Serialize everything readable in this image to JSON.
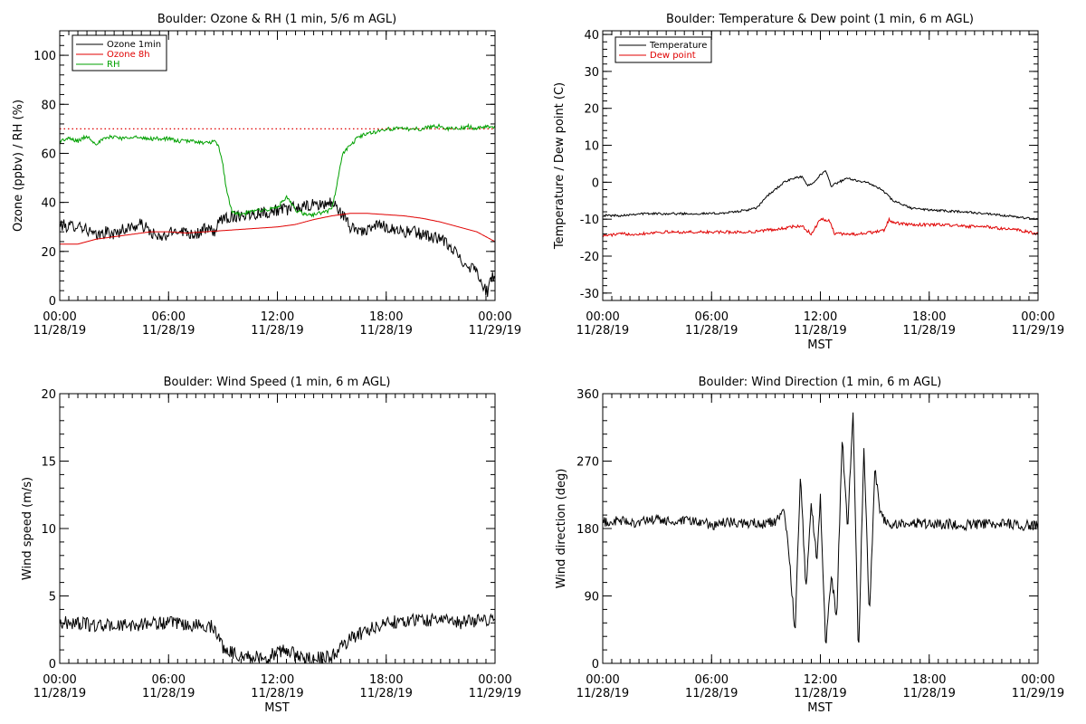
{
  "chart_data": [
    {
      "type": "line",
      "title": "Boulder: Ozone & RH (1 min, 5/6 m AGL)",
      "xlabel": "",
      "ylabel": "Ozone (ppbv) / RH (%)",
      "xlim": [
        0,
        24
      ],
      "ylim": [
        0,
        110
      ],
      "grid": false,
      "legend_position": "top-left",
      "xticks": [
        {
          "hours": 0,
          "time": "00:00",
          "date": "11/28/19"
        },
        {
          "hours": 6,
          "time": "06:00",
          "date": "11/28/19"
        },
        {
          "hours": 12,
          "time": "12:00",
          "date": "11/28/19"
        },
        {
          "hours": 18,
          "time": "18:00",
          "date": "11/28/19"
        },
        {
          "hours": 24,
          "time": "00:00",
          "date": "11/29/19"
        }
      ],
      "yticks": [
        0,
        20,
        40,
        60,
        80,
        100
      ],
      "series": [
        {
          "name": "Ozone 1min",
          "color": "#000000",
          "noise": 2.5,
          "x": [
            0,
            0.5,
            1,
            1.5,
            2,
            2.5,
            3,
            3.5,
            4,
            4.5,
            5,
            5.5,
            6,
            6.5,
            7,
            7.5,
            8,
            8.5,
            9,
            9.5,
            10,
            10.5,
            11,
            11.5,
            12,
            12.5,
            13,
            13.5,
            14,
            14.5,
            15,
            15.5,
            16,
            16.5,
            17,
            17.5,
            18,
            18.5,
            19,
            19.5,
            20,
            20.5,
            21,
            21.5,
            22,
            22.5,
            23,
            23.3,
            23.6,
            23.8,
            24
          ],
          "y": [
            31,
            30,
            31,
            29,
            26,
            28,
            27,
            29,
            30,
            31,
            28,
            25,
            27,
            29,
            28,
            27,
            29,
            28,
            34,
            34,
            35,
            35,
            36,
            36,
            37,
            37,
            38,
            38,
            39,
            39,
            40,
            36,
            30,
            29,
            28,
            31,
            30,
            29,
            28,
            28,
            27,
            26,
            25,
            22,
            18,
            14,
            13,
            6,
            3,
            10,
            9
          ]
        },
        {
          "name": "Ozone 8h",
          "color": "#e00000",
          "noise": 0,
          "x": [
            0,
            1,
            2,
            3,
            4,
            5,
            6,
            7,
            8,
            9,
            10,
            11,
            12,
            13,
            14,
            15,
            16,
            17,
            18,
            19,
            20,
            21,
            22,
            23,
            24
          ],
          "y": [
            23,
            23,
            25,
            26,
            27,
            28,
            28,
            27.5,
            28,
            28.5,
            29,
            29.5,
            30,
            31,
            33,
            34.5,
            35.5,
            35.5,
            35,
            34.5,
            33.5,
            32,
            30,
            28,
            24
          ]
        },
        {
          "name": "RH",
          "color": "#00a000",
          "noise": 0.8,
          "x": [
            0,
            0.5,
            1,
            1.5,
            2,
            2.5,
            3,
            3.5,
            4,
            4.5,
            5,
            5.5,
            6,
            6.5,
            7,
            7.5,
            8,
            8.5,
            8.8,
            9,
            9.2,
            9.5,
            10,
            10.5,
            11,
            11.5,
            12,
            12.5,
            13,
            13.5,
            14,
            14.5,
            15,
            15.3,
            15.6,
            16,
            16.5,
            17,
            17.5,
            18,
            18.5,
            19,
            19.5,
            20,
            20.5,
            21,
            21.5,
            22,
            22.5,
            23,
            23.5,
            24
          ],
          "y": [
            65,
            66,
            65,
            67,
            64,
            66,
            67,
            66,
            67,
            66,
            66,
            66,
            66,
            65,
            65,
            65,
            64,
            65,
            62,
            55,
            45,
            36,
            35,
            36,
            37,
            37,
            38,
            42,
            37,
            35,
            35,
            36,
            37,
            48,
            60,
            63,
            67,
            68,
            69,
            70,
            70,
            70,
            70,
            70,
            71,
            71,
            70,
            70,
            71,
            70,
            71,
            71
          ]
        }
      ],
      "reference_line": {
        "y": 70,
        "color": "#e00000",
        "style": "dotted"
      }
    },
    {
      "type": "line",
      "title": "Boulder: Temperature & Dew point (1 min, 6 m AGL)",
      "xlabel": "MST",
      "ylabel": "Temperature / Dew point (C)",
      "xlim": [
        0,
        24
      ],
      "ylim": [
        -32,
        41
      ],
      "grid": false,
      "legend_position": "top-left",
      "xticks": [
        {
          "hours": 0,
          "time": "00:00",
          "date": "11/28/19"
        },
        {
          "hours": 6,
          "time": "06:00",
          "date": "11/28/19"
        },
        {
          "hours": 12,
          "time": "12:00",
          "date": "11/28/19"
        },
        {
          "hours": 18,
          "time": "18:00",
          "date": "11/28/19"
        },
        {
          "hours": 24,
          "time": "00:00",
          "date": "11/29/19"
        }
      ],
      "yticks": [
        -30,
        -20,
        -10,
        0,
        10,
        20,
        30,
        40
      ],
      "series": [
        {
          "name": "Temperature",
          "color": "#000000",
          "noise": 0.3,
          "x": [
            0,
            1,
            2,
            3,
            4,
            5,
            6,
            7,
            8,
            8.5,
            9,
            9.5,
            10,
            10.5,
            11,
            11.3,
            11.6,
            12,
            12.3,
            12.6,
            13,
            13.5,
            14,
            14.5,
            15,
            15.5,
            16,
            16.5,
            17,
            18,
            19,
            20,
            21,
            22,
            23,
            24
          ],
          "y": [
            -9,
            -9,
            -8.5,
            -8.5,
            -8.5,
            -8.5,
            -8.5,
            -8.2,
            -7.5,
            -7,
            -4,
            -2,
            0,
            1,
            1.5,
            -1,
            0,
            2,
            3,
            -1,
            0,
            1,
            0.5,
            0,
            -1,
            -2.5,
            -5,
            -6,
            -7,
            -7.5,
            -7.8,
            -8,
            -8.5,
            -9,
            -9.5,
            -10
          ]
        },
        {
          "name": "Dew point",
          "color": "#e00000",
          "noise": 0.4,
          "x": [
            0,
            1,
            2,
            3,
            4,
            5,
            6,
            7,
            8,
            9,
            10,
            10.5,
            11,
            11.5,
            12,
            12.5,
            12.8,
            13,
            14,
            15,
            15.5,
            15.8,
            16,
            17,
            18,
            19,
            20,
            21,
            22,
            23,
            24
          ],
          "y": [
            -14.5,
            -14,
            -14,
            -13.5,
            -13.5,
            -13.5,
            -13.5,
            -13.5,
            -13.5,
            -13,
            -12.5,
            -12,
            -12,
            -14,
            -10,
            -10.5,
            -14,
            -14,
            -14,
            -13.5,
            -13,
            -10,
            -11,
            -11.5,
            -11.5,
            -11.5,
            -12,
            -12,
            -12.5,
            -13,
            -14
          ]
        }
      ]
    },
    {
      "type": "line",
      "title": "Boulder: Wind Speed (1 min, 6 m AGL)",
      "xlabel": "MST",
      "ylabel": "Wind speed (m/s)",
      "xlim": [
        0,
        24
      ],
      "ylim": [
        0,
        20
      ],
      "grid": false,
      "xticks": [
        {
          "hours": 0,
          "time": "00:00",
          "date": "11/28/19"
        },
        {
          "hours": 6,
          "time": "06:00",
          "date": "11/28/19"
        },
        {
          "hours": 12,
          "time": "12:00",
          "date": "11/28/19"
        },
        {
          "hours": 18,
          "time": "18:00",
          "date": "11/28/19"
        },
        {
          "hours": 24,
          "time": "00:00",
          "date": "11/29/19"
        }
      ],
      "yticks": [
        0,
        5,
        10,
        15,
        20
      ],
      "series": [
        {
          "color": "#000000",
          "noise": 0.5,
          "x": [
            0,
            1,
            2,
            3,
            4,
            5,
            6,
            7,
            8,
            8.5,
            9,
            9.5,
            10,
            10.5,
            11,
            11.5,
            12,
            12.5,
            13,
            13.5,
            14,
            14.5,
            15,
            15.5,
            16,
            17,
            18,
            19,
            20,
            21,
            22,
            23,
            24
          ],
          "y": [
            3,
            3,
            2.8,
            2.8,
            2.8,
            3,
            3,
            2.8,
            2.8,
            2.7,
            1.2,
            0.8,
            0.6,
            0.5,
            0.4,
            0.5,
            0.8,
            1,
            0.6,
            0.4,
            0.4,
            0.4,
            0.5,
            1.2,
            1.8,
            2.5,
            3,
            3.2,
            3.2,
            3.3,
            3,
            3.2,
            3.3
          ]
        }
      ]
    },
    {
      "type": "line",
      "title": "Boulder: Wind Direction (1 min, 6 m AGL)",
      "xlabel": "MST",
      "ylabel": "Wind direction (deg)",
      "xlim": [
        0,
        24
      ],
      "ylim": [
        0,
        360
      ],
      "grid": false,
      "xticks": [
        {
          "hours": 0,
          "time": "00:00",
          "date": "11/28/19"
        },
        {
          "hours": 6,
          "time": "06:00",
          "date": "11/28/19"
        },
        {
          "hours": 12,
          "time": "12:00",
          "date": "11/28/19"
        },
        {
          "hours": 18,
          "time": "18:00",
          "date": "11/28/19"
        },
        {
          "hours": 24,
          "time": "00:00",
          "date": "11/29/19"
        }
      ],
      "yticks": [
        0,
        90,
        180,
        270,
        360
      ],
      "series": [
        {
          "color": "#000000",
          "noise": 7,
          "x": [
            0,
            1,
            2,
            3,
            4,
            5,
            6,
            7,
            8,
            9,
            9.5,
            10,
            10.3,
            10.6,
            10.9,
            11.2,
            11.5,
            11.8,
            12,
            12.3,
            12.6,
            12.9,
            13.2,
            13.5,
            13.8,
            14.1,
            14.4,
            14.7,
            15,
            15.3,
            15.6,
            16,
            17,
            18,
            19,
            20,
            21,
            22,
            23,
            24
          ],
          "y": [
            188,
            190,
            188,
            192,
            188,
            190,
            185,
            188,
            187,
            186,
            190,
            200,
            140,
            40,
            250,
            100,
            210,
            140,
            220,
            20,
            120,
            60,
            300,
            180,
            340,
            10,
            290,
            60,
            260,
            200,
            190,
            185,
            188,
            186,
            186,
            185,
            186,
            186,
            185,
            183
          ]
        }
      ]
    }
  ]
}
